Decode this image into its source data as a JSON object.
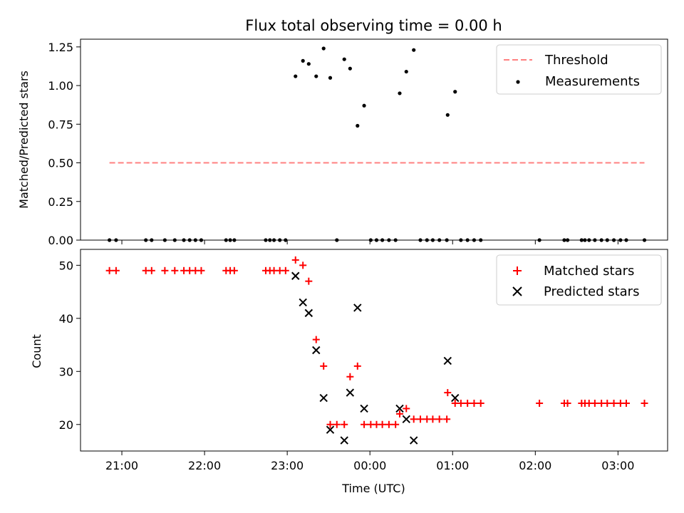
{
  "chart_data": [
    {
      "type": "scatter",
      "title": "Flux total observing time = 0.00 h",
      "xlabel": "",
      "ylabel": "Matched/Predicted stars",
      "xlim": [
        -2.5,
        4.6
      ],
      "ylim": [
        0.0,
        1.3
      ],
      "yticks": [
        0.0,
        0.25,
        0.5,
        0.75,
        1.0,
        1.25
      ],
      "ytick_labels": [
        "0.00",
        "0.25",
        "0.50",
        "0.75",
        "1.00",
        "1.25"
      ],
      "xticks": [
        -2,
        -1,
        0,
        1,
        2,
        3,
        4
      ],
      "legend_position": "top-right",
      "threshold": {
        "name": "Threshold",
        "value": 0.5,
        "x": [
          -2.15,
          4.32
        ],
        "color": "#ff8080"
      },
      "series": [
        {
          "name": "Measurements",
          "color": "#000000",
          "points": [
            [
              -2.15,
              0
            ],
            [
              -2.07,
              0
            ],
            [
              -1.71,
              0
            ],
            [
              -1.64,
              0
            ],
            [
              -1.48,
              0
            ],
            [
              -1.36,
              0
            ],
            [
              -1.25,
              0
            ],
            [
              -1.18,
              0
            ],
            [
              -1.11,
              0
            ],
            [
              -1.04,
              0
            ],
            [
              -0.74,
              0
            ],
            [
              -0.69,
              0
            ],
            [
              -0.64,
              0
            ],
            [
              -0.26,
              0
            ],
            [
              -0.21,
              0
            ],
            [
              -0.16,
              0
            ],
            [
              -0.09,
              0
            ],
            [
              -0.02,
              0
            ],
            [
              0.1,
              1.06
            ],
            [
              0.19,
              1.16
            ],
            [
              0.26,
              1.14
            ],
            [
              0.35,
              1.06
            ],
            [
              0.44,
              1.24
            ],
            [
              0.52,
              1.05
            ],
            [
              0.6,
              0.0
            ],
            [
              0.69,
              1.17
            ],
            [
              0.76,
              1.11
            ],
            [
              0.85,
              0.74
            ],
            [
              0.93,
              0.87
            ],
            [
              1.01,
              0
            ],
            [
              1.08,
              0
            ],
            [
              1.15,
              0
            ],
            [
              1.23,
              0
            ],
            [
              1.31,
              0
            ],
            [
              1.36,
              0.95
            ],
            [
              1.44,
              1.09
            ],
            [
              1.53,
              1.23
            ],
            [
              1.61,
              0
            ],
            [
              1.69,
              0
            ],
            [
              1.76,
              0
            ],
            [
              1.84,
              0
            ],
            [
              1.93,
              0
            ],
            [
              1.94,
              0.81
            ],
            [
              2.03,
              0.96
            ],
            [
              2.1,
              0
            ],
            [
              2.18,
              0
            ],
            [
              2.26,
              0
            ],
            [
              2.34,
              0
            ],
            [
              3.05,
              0
            ],
            [
              3.35,
              0
            ],
            [
              3.39,
              0
            ],
            [
              3.56,
              0
            ],
            [
              3.6,
              0
            ],
            [
              3.65,
              0
            ],
            [
              3.72,
              0
            ],
            [
              3.8,
              0
            ],
            [
              3.87,
              0
            ],
            [
              3.95,
              0
            ],
            [
              4.03,
              0
            ],
            [
              4.1,
              0
            ],
            [
              4.32,
              0
            ]
          ]
        }
      ]
    },
    {
      "type": "scatter",
      "title": "",
      "xlabel": "Time (UTC)",
      "ylabel": "Count",
      "xlim": [
        -2.5,
        4.6
      ],
      "ylim": [
        15,
        53
      ],
      "yticks": [
        20,
        30,
        40,
        50
      ],
      "ytick_labels": [
        "20",
        "30",
        "40",
        "50"
      ],
      "xticks": [
        -2,
        -1,
        0,
        1,
        2,
        3,
        4
      ],
      "xtick_labels": [
        "21:00",
        "22:00",
        "23:00",
        "00:00",
        "01:00",
        "02:00",
        "03:00"
      ],
      "legend_position": "top-right",
      "series": [
        {
          "name": "Matched stars",
          "marker": "plus",
          "color": "#ff0000",
          "points": [
            [
              -2.15,
              49
            ],
            [
              -2.07,
              49
            ],
            [
              -1.71,
              49
            ],
            [
              -1.64,
              49
            ],
            [
              -1.48,
              49
            ],
            [
              -1.36,
              49
            ],
            [
              -1.25,
              49
            ],
            [
              -1.18,
              49
            ],
            [
              -1.11,
              49
            ],
            [
              -1.04,
              49
            ],
            [
              -0.74,
              49
            ],
            [
              -0.69,
              49
            ],
            [
              -0.64,
              49
            ],
            [
              -0.26,
              49
            ],
            [
              -0.21,
              49
            ],
            [
              -0.16,
              49
            ],
            [
              -0.09,
              49
            ],
            [
              -0.02,
              49
            ],
            [
              0.1,
              51
            ],
            [
              0.19,
              50
            ],
            [
              0.26,
              47
            ],
            [
              0.35,
              36
            ],
            [
              0.44,
              31
            ],
            [
              0.52,
              20
            ],
            [
              0.6,
              20
            ],
            [
              0.69,
              20
            ],
            [
              0.76,
              29
            ],
            [
              0.85,
              31
            ],
            [
              0.93,
              20
            ],
            [
              1.01,
              20
            ],
            [
              1.08,
              20
            ],
            [
              1.15,
              20
            ],
            [
              1.23,
              20
            ],
            [
              1.31,
              20
            ],
            [
              1.36,
              22
            ],
            [
              1.44,
              23
            ],
            [
              1.53,
              21
            ],
            [
              1.61,
              21
            ],
            [
              1.69,
              21
            ],
            [
              1.76,
              21
            ],
            [
              1.84,
              21
            ],
            [
              1.93,
              21
            ],
            [
              1.94,
              26
            ],
            [
              2.03,
              24
            ],
            [
              2.1,
              24
            ],
            [
              2.18,
              24
            ],
            [
              2.26,
              24
            ],
            [
              2.34,
              24
            ],
            [
              3.05,
              24
            ],
            [
              3.35,
              24
            ],
            [
              3.39,
              24
            ],
            [
              3.56,
              24
            ],
            [
              3.6,
              24
            ],
            [
              3.65,
              24
            ],
            [
              3.72,
              24
            ],
            [
              3.8,
              24
            ],
            [
              3.87,
              24
            ],
            [
              3.95,
              24
            ],
            [
              4.03,
              24
            ],
            [
              4.1,
              24
            ],
            [
              4.32,
              24
            ]
          ]
        },
        {
          "name": "Predicted stars",
          "marker": "x",
          "color": "#000000",
          "points": [
            [
              0.1,
              48
            ],
            [
              0.19,
              43
            ],
            [
              0.26,
              41
            ],
            [
              0.35,
              34
            ],
            [
              0.44,
              25
            ],
            [
              0.52,
              19
            ],
            [
              0.69,
              17
            ],
            [
              0.76,
              26
            ],
            [
              0.85,
              42
            ],
            [
              0.93,
              23
            ],
            [
              1.36,
              23
            ],
            [
              1.44,
              21
            ],
            [
              1.53,
              17
            ],
            [
              1.94,
              32
            ],
            [
              2.03,
              25
            ]
          ]
        }
      ]
    }
  ]
}
